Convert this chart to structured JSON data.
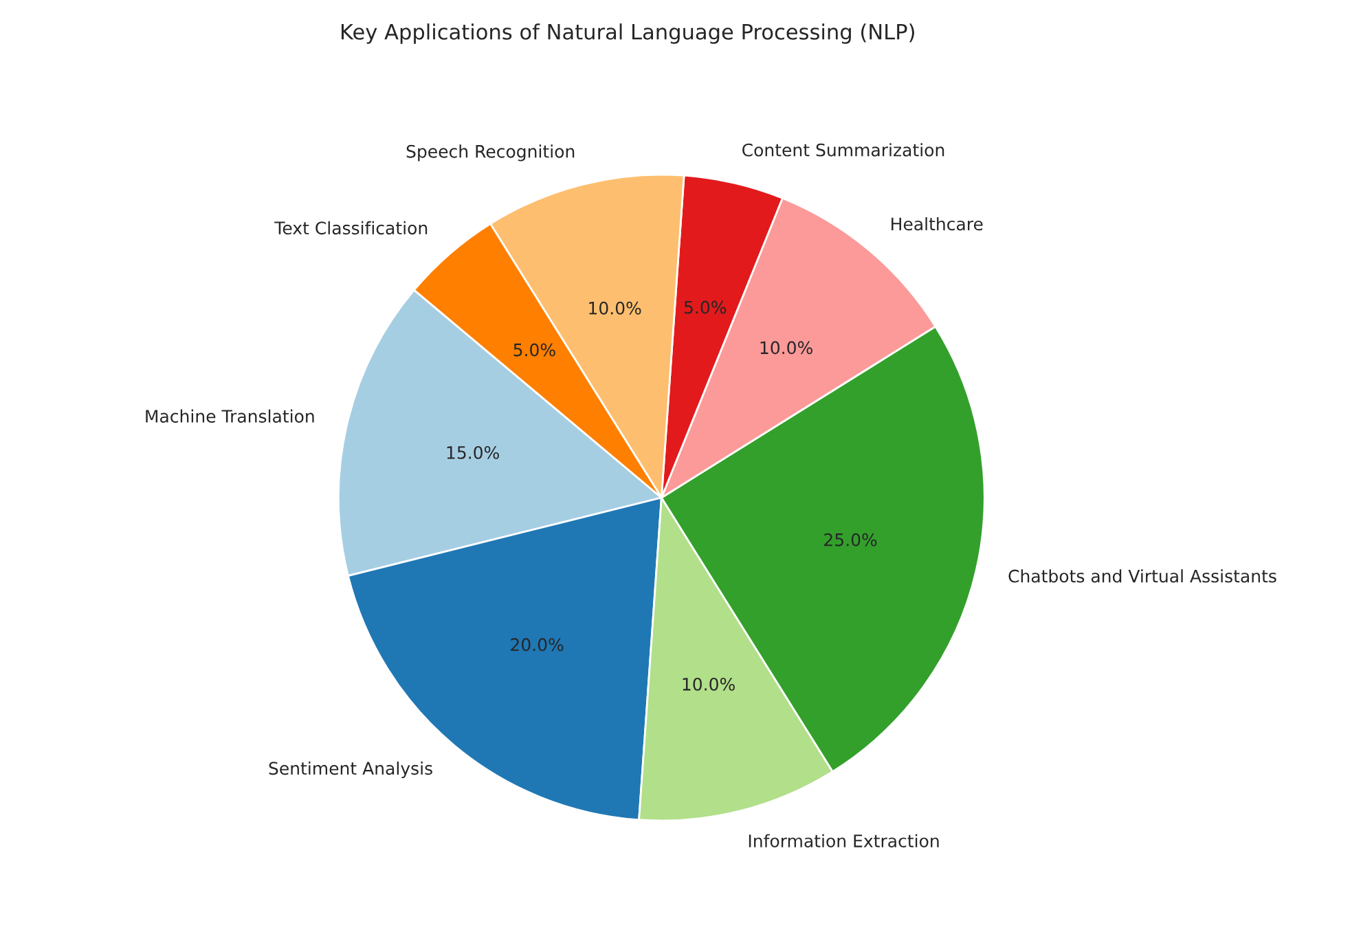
{
  "chart_data": {
    "type": "pie",
    "title": "Key Applications of Natural Language Processing (NLP)",
    "categories": [
      "Machine Translation",
      "Sentiment Analysis",
      "Information Extraction",
      "Chatbots and Virtual Assistants",
      "Healthcare",
      "Content Summarization",
      "Speech Recognition",
      "Text Classification"
    ],
    "values": [
      15,
      20,
      10,
      25,
      10,
      5,
      10,
      5
    ],
    "value_labels": [
      "15.0%",
      "20.0%",
      "10.0%",
      "25.0%",
      "10.0%",
      "5.0%",
      "10.0%",
      "5.0%"
    ],
    "colors": [
      "#a6cee3",
      "#1f78b4",
      "#b2df8a",
      "#33a02c",
      "#fb9a99",
      "#e31a1c",
      "#fdbf6f",
      "#ff7f00"
    ]
  }
}
